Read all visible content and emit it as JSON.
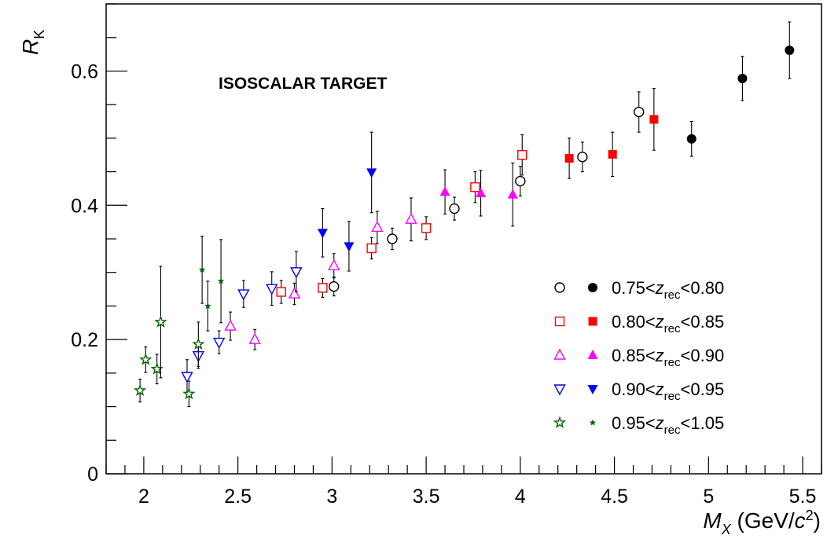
{
  "chart_data": {
    "type": "scatter",
    "annotation": "ISOSCALAR TARGET",
    "xlabel": {
      "main": "M",
      "sub": "X",
      "unit_open": " (GeV/",
      "unit_c": "c",
      "unit_sup": "2",
      "unit_close": ")"
    },
    "ylabel": {
      "main": "R",
      "sub": "K"
    },
    "xlim": [
      1.8,
      5.6
    ],
    "ylim": [
      0,
      0.7
    ],
    "x_ticks": [
      2,
      2.5,
      3,
      3.5,
      4,
      4.5,
      5,
      5.5
    ],
    "x_tick_labels": [
      "2",
      "2.5",
      "3",
      "3.5",
      "4",
      "4.5",
      "5",
      "5.5"
    ],
    "y_ticks": [
      0,
      0.2,
      0.4,
      0.6
    ],
    "y_tick_labels": [
      "0",
      "0.2",
      "0.4",
      "0.6"
    ],
    "legend_position": "right",
    "series": [
      {
        "label_pre": "0.75<",
        "label_var": "z",
        "label_sub": "rec",
        "label_post": "<0.80",
        "marker": "circle",
        "color": "#000000",
        "open": [
          {
            "x": 3.01,
            "y": 0.279,
            "err": 0.014
          },
          {
            "x": 3.32,
            "y": 0.35,
            "err": 0.016
          },
          {
            "x": 3.65,
            "y": 0.395,
            "err": 0.017
          },
          {
            "x": 4.0,
            "y": 0.436,
            "err": 0.022
          },
          {
            "x": 4.33,
            "y": 0.472,
            "err": 0.022
          },
          {
            "x": 4.63,
            "y": 0.539,
            "err": 0.03
          }
        ],
        "filled": [
          {
            "x": 4.91,
            "y": 0.499,
            "err": 0.026
          },
          {
            "x": 5.18,
            "y": 0.589,
            "err": 0.033
          },
          {
            "x": 5.43,
            "y": 0.631,
            "err": 0.042
          }
        ]
      },
      {
        "label_pre": "0.80<",
        "label_var": "z",
        "label_sub": "rec",
        "label_post": "<0.85",
        "marker": "square",
        "color": "#ff0000",
        "open": [
          {
            "x": 2.73,
            "y": 0.271,
            "err": 0.017
          },
          {
            "x": 2.95,
            "y": 0.277,
            "err": 0.014
          },
          {
            "x": 3.21,
            "y": 0.336,
            "err": 0.016
          },
          {
            "x": 3.5,
            "y": 0.366,
            "err": 0.017
          },
          {
            "x": 3.76,
            "y": 0.427,
            "err": 0.023
          },
          {
            "x": 4.01,
            "y": 0.475,
            "err": 0.03
          }
        ],
        "filled": [
          {
            "x": 4.26,
            "y": 0.47,
            "err": 0.03
          },
          {
            "x": 4.49,
            "y": 0.476,
            "err": 0.033
          },
          {
            "x": 4.71,
            "y": 0.528,
            "err": 0.046
          }
        ]
      },
      {
        "label_pre": "0.85<",
        "label_var": "z",
        "label_sub": "rec",
        "label_post": "<0.90",
        "marker": "triangle-up",
        "color": "#ff00ff",
        "open": [
          {
            "x": 2.46,
            "y": 0.22,
            "err": 0.021
          },
          {
            "x": 2.59,
            "y": 0.2,
            "err": 0.015
          },
          {
            "x": 2.8,
            "y": 0.268,
            "err": 0.016
          },
          {
            "x": 3.01,
            "y": 0.31,
            "err": 0.018
          },
          {
            "x": 3.24,
            "y": 0.367,
            "err": 0.024
          },
          {
            "x": 3.42,
            "y": 0.379,
            "err": 0.032
          }
        ],
        "filled": [
          {
            "x": 3.6,
            "y": 0.42,
            "err": 0.033
          },
          {
            "x": 3.79,
            "y": 0.418,
            "err": 0.034
          },
          {
            "x": 3.96,
            "y": 0.416,
            "err": 0.047
          }
        ]
      },
      {
        "label_pre": "0.90<",
        "label_var": "z",
        "label_sub": "rec",
        "label_post": "<0.95",
        "marker": "triangle-down",
        "color": "#0000ff",
        "open": [
          {
            "x": 2.23,
            "y": 0.145,
            "err": 0.025
          },
          {
            "x": 2.29,
            "y": 0.176,
            "err": 0.019
          },
          {
            "x": 2.4,
            "y": 0.196,
            "err": 0.017
          },
          {
            "x": 2.53,
            "y": 0.268,
            "err": 0.02
          },
          {
            "x": 2.68,
            "y": 0.276,
            "err": 0.025
          },
          {
            "x": 2.81,
            "y": 0.301,
            "err": 0.03
          }
        ],
        "filled": [
          {
            "x": 2.95,
            "y": 0.359,
            "err": 0.036
          },
          {
            "x": 3.09,
            "y": 0.339,
            "err": 0.037
          },
          {
            "x": 3.21,
            "y": 0.449,
            "err": 0.06
          }
        ]
      },
      {
        "label_pre": "0.95<",
        "label_var": "z",
        "label_sub": "rec",
        "label_post": "<1.05",
        "marker": "star",
        "color": "#006400",
        "open": [
          {
            "x": 1.98,
            "y": 0.124,
            "err": 0.017
          },
          {
            "x": 2.01,
            "y": 0.17,
            "err": 0.019
          },
          {
            "x": 2.07,
            "y": 0.156,
            "err": 0.022
          },
          {
            "x": 2.09,
            "y": 0.226,
            "err": 0.083
          },
          {
            "x": 2.24,
            "y": 0.119,
            "err": 0.019
          },
          {
            "x": 2.29,
            "y": 0.193,
            "err": 0.033
          }
        ],
        "filled": [
          {
            "x": 2.31,
            "y": 0.304,
            "err": 0.05
          },
          {
            "x": 2.34,
            "y": 0.25,
            "err": 0.037
          },
          {
            "x": 2.41,
            "y": 0.287,
            "err": 0.062
          }
        ]
      }
    ]
  }
}
